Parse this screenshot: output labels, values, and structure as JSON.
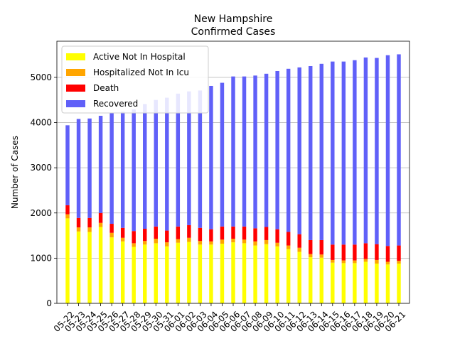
{
  "chart_data": {
    "type": "bar",
    "stacked": true,
    "title": "New Hampshire\nConfirmed Cases",
    "xlabel": "",
    "ylabel": "Number of Cases",
    "ylim": [
      0,
      5800
    ],
    "yticks": [
      0,
      1000,
      2000,
      3000,
      4000,
      5000
    ],
    "grid": "y",
    "legend": "top-left",
    "categories": [
      "05-22",
      "05-23",
      "05-24",
      "05-25",
      "05-26",
      "05-27",
      "05-28",
      "05-29",
      "05-30",
      "05-31",
      "06-01",
      "06-02",
      "06-03",
      "06-04",
      "06-05",
      "06-06",
      "06-07",
      "06-08",
      "06-09",
      "06-10",
      "06-11",
      "06-12",
      "06-13",
      "06-14",
      "06-15",
      "06-16",
      "06-17",
      "06-18",
      "06-19",
      "06-20",
      "06-21"
    ],
    "series": [
      {
        "name": "Active Not In Hospital",
        "color": "#ffff00",
        "values": [
          1880,
          1590,
          1580,
          1690,
          1460,
          1370,
          1250,
          1300,
          1330,
          1260,
          1340,
          1360,
          1300,
          1300,
          1320,
          1350,
          1330,
          1280,
          1310,
          1260,
          1200,
          1140,
          1020,
          1010,
          900,
          890,
          890,
          920,
          880,
          860,
          880
        ]
      },
      {
        "name": "Hospitalized Not In Icu",
        "color": "#ffa500",
        "values": [
          90,
          90,
          100,
          90,
          100,
          80,
          80,
          80,
          100,
          90,
          80,
          90,
          80,
          70,
          90,
          80,
          80,
          90,
          90,
          80,
          80,
          90,
          70,
          70,
          60,
          60,
          60,
          60,
          80,
          60,
          60
        ]
      },
      {
        "name": "Death",
        "color": "#ff0000",
        "values": [
          200,
          210,
          210,
          220,
          200,
          220,
          270,
          270,
          270,
          260,
          280,
          280,
          290,
          270,
          290,
          270,
          290,
          290,
          290,
          300,
          300,
          300,
          310,
          320,
          340,
          350,
          350,
          350,
          350,
          350,
          340
        ]
      },
      {
        "name": "Recovered",
        "color": "#6060f8",
        "values": [
          1770,
          2190,
          2200,
          2150,
          2450,
          2570,
          2690,
          2760,
          2800,
          2940,
          2940,
          2960,
          3040,
          3170,
          3180,
          3320,
          3320,
          3380,
          3390,
          3500,
          3610,
          3690,
          3850,
          3900,
          4050,
          4050,
          4080,
          4110,
          4120,
          4220,
          4230
        ]
      }
    ]
  }
}
